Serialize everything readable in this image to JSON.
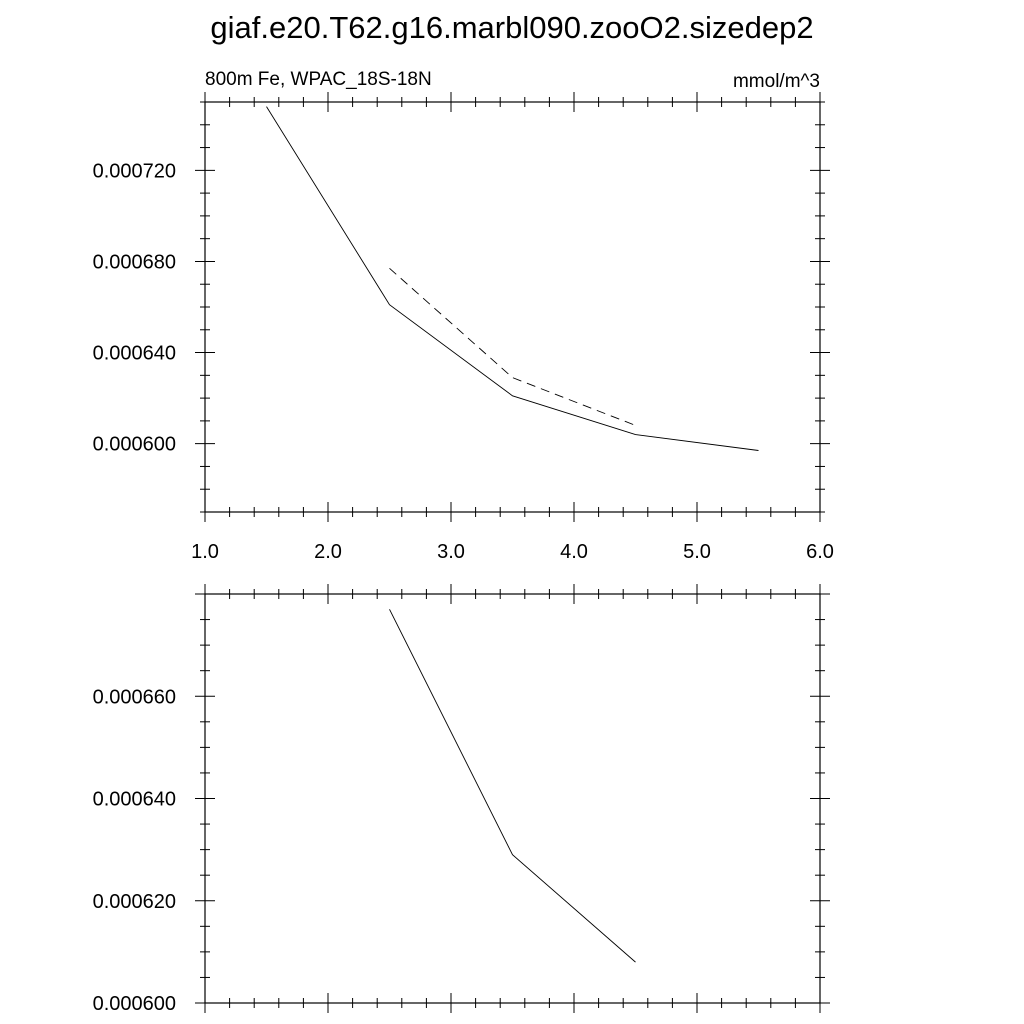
{
  "page_title": "giaf.e20.T62.g16.marbl090.zooO2.sizedep2",
  "chart_data": [
    {
      "type": "line",
      "title": "",
      "left_string": "800m Fe, WPAC_18S-18N",
      "right_string": "mmol/m^3",
      "xlim": [
        1.0,
        6.0
      ],
      "ylim": [
        0.00057,
        0.00075
      ],
      "x_tick_values": [
        1,
        2,
        3,
        4,
        5,
        6
      ],
      "x_tick_labels": [
        "1.0",
        "2.0",
        "3.0",
        "4.0",
        "5.0",
        "6.0"
      ],
      "y_tick_values": [
        0.0006,
        0.00064,
        0.00068,
        0.00072
      ],
      "y_tick_labels": [
        "0.000600",
        "0.000640",
        "0.000680",
        "0.000720"
      ],
      "grid": false,
      "series": [
        {
          "style": "solid",
          "x": [
            1.5,
            2.5,
            3.5,
            4.5,
            5.5
          ],
          "y": [
            0.000748,
            0.000661,
            0.000621,
            0.000604,
            0.000597
          ]
        },
        {
          "style": "dashed",
          "x": [
            2.5,
            3.5,
            4.5
          ],
          "y": [
            0.000677,
            0.000629,
            0.000608
          ]
        }
      ]
    },
    {
      "type": "line",
      "title": "",
      "xlim": [
        1.0,
        6.0
      ],
      "ylim": [
        0.0006,
        0.00068
      ],
      "x_tick_values": [
        1,
        2,
        3,
        4,
        5,
        6
      ],
      "y_tick_values": [
        0.0006,
        0.00062,
        0.00064,
        0.00066
      ],
      "y_tick_labels": [
        "0.000600",
        "0.000620",
        "0.000640",
        "0.000660"
      ],
      "grid": false,
      "series": [
        {
          "style": "solid",
          "x": [
            2.5,
            3.5,
            4.5
          ],
          "y": [
            0.000677,
            0.000629,
            0.000608
          ]
        }
      ]
    }
  ]
}
